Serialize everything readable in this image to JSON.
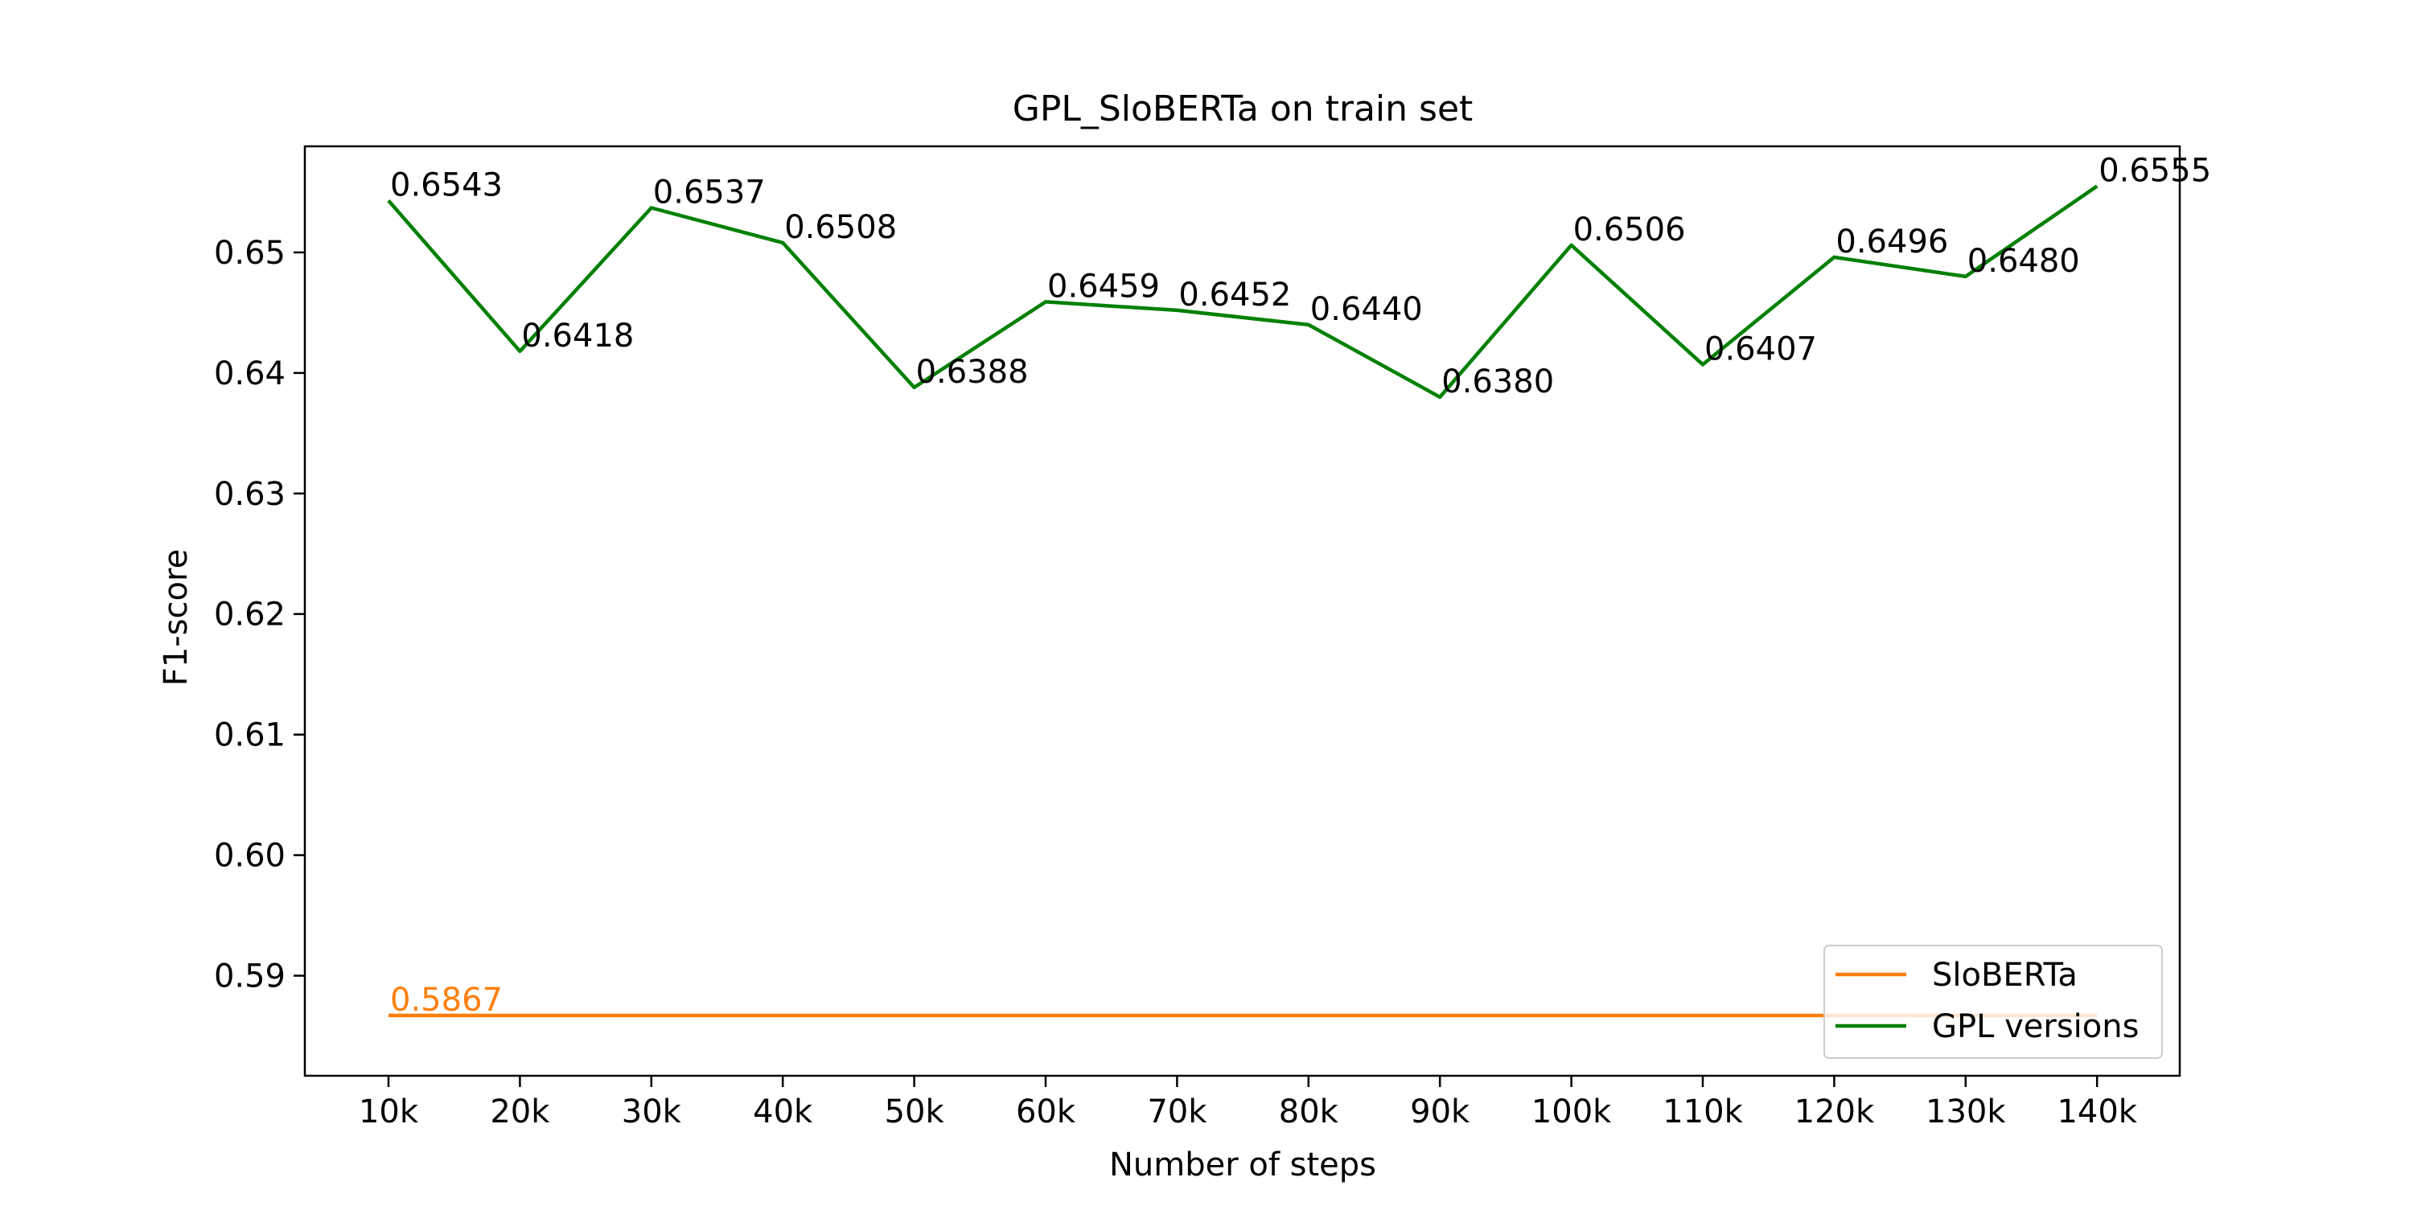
{
  "chart_data": {
    "type": "line",
    "title": "GPL_SloBERTa on train set",
    "xlabel": "Number of steps",
    "ylabel": "F1-score",
    "categories": [
      "10k",
      "20k",
      "30k",
      "40k",
      "50k",
      "60k",
      "70k",
      "80k",
      "90k",
      "100k",
      "110k",
      "120k",
      "130k",
      "140k"
    ],
    "ylim": [
      0.5817,
      0.6588
    ],
    "yticks": [
      "0.59",
      "0.60",
      "0.61",
      "0.62",
      "0.63",
      "0.64",
      "0.65"
    ],
    "grid": false,
    "legend_position": "bottom-right",
    "series": [
      {
        "name": "SloBERTa",
        "color": "#ff7f0e",
        "values": [
          0.5867,
          0.5867,
          0.5867,
          0.5867,
          0.5867,
          0.5867,
          0.5867,
          0.5867,
          0.5867,
          0.5867,
          0.5867,
          0.5867,
          0.5867,
          0.5867
        ],
        "point_labels": [
          "0.5867"
        ]
      },
      {
        "name": "GPL versions",
        "color": "#008000",
        "values": [
          0.6543,
          0.6418,
          0.6537,
          0.6508,
          0.6388,
          0.6459,
          0.6452,
          0.644,
          0.638,
          0.6506,
          0.6407,
          0.6496,
          0.648,
          0.6555
        ],
        "point_labels": [
          "0.6543",
          "0.6418",
          "0.6537",
          "0.6508",
          "0.6388",
          "0.6459",
          "0.6452",
          "0.6440",
          "0.6380",
          "0.6506",
          "0.6407",
          "0.6496",
          "0.6480",
          "0.6555"
        ]
      }
    ]
  }
}
